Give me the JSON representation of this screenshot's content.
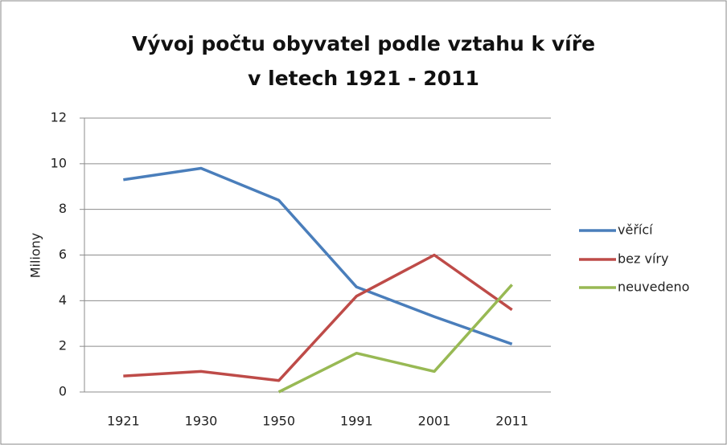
{
  "chart_data": {
    "type": "line",
    "title": [
      "Vývoj počtu obyvatel podle vztahu k víře",
      "v letech 1921 - 2011"
    ],
    "y_label": "Miliony",
    "categories": [
      "1921",
      "1930",
      "1950",
      "1991",
      "2001",
      "2011"
    ],
    "series": [
      {
        "name": "věřící",
        "color": "#4a7ebb",
        "values": [
          9.3,
          9.8,
          8.4,
          4.6,
          3.3,
          2.1
        ]
      },
      {
        "name": "bez víry",
        "color": "#be4b48",
        "values": [
          0.7,
          0.9,
          0.5,
          4.2,
          6.0,
          3.6
        ]
      },
      {
        "name": "neuvedeno",
        "color": "#98b954",
        "values": [
          null,
          null,
          0,
          1.7,
          0.9,
          4.7
        ]
      }
    ],
    "ylim": [
      0,
      12
    ],
    "yticks": [
      0,
      2,
      4,
      6,
      8,
      10,
      12
    ],
    "grid": true,
    "legend": "right"
  }
}
